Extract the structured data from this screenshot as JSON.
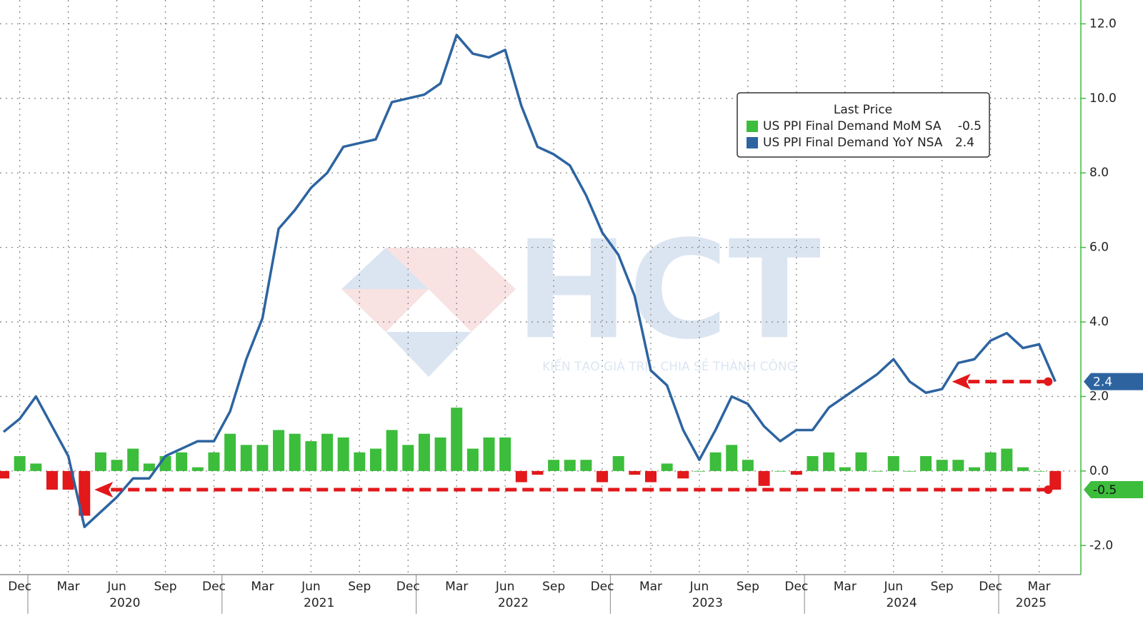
{
  "chart_data": {
    "type": "combo",
    "categories": [
      null,
      "Dec",
      null,
      null,
      "Mar",
      null,
      null,
      "Jun",
      null,
      null,
      "Sep",
      null,
      null,
      "Dec",
      null,
      null,
      "Mar",
      null,
      null,
      "Jun",
      null,
      null,
      "Sep",
      null,
      null,
      "Dec",
      null,
      null,
      "Mar",
      null,
      null,
      "Jun",
      null,
      null,
      "Sep",
      null,
      null,
      "Dec",
      null,
      null,
      "Mar",
      null,
      null,
      "Jun",
      null,
      null,
      "Sep",
      null,
      null,
      "Dec",
      null,
      null,
      "Mar",
      null,
      null,
      "Jun",
      null,
      null,
      "Sep",
      null,
      null,
      "Dec",
      null,
      null,
      "Mar",
      null
    ],
    "groups": [
      {
        "label": null,
        "span": 2
      },
      {
        "label": "2020",
        "span": 12
      },
      {
        "label": "2021",
        "span": 12
      },
      {
        "label": "2022",
        "span": 12
      },
      {
        "label": "2023",
        "span": 12
      },
      {
        "label": "2024",
        "span": 12
      },
      {
        "label": "2025",
        "span": 4
      }
    ],
    "series": [
      {
        "name": "US PPI Final Demand MoM SA",
        "type": "bar",
        "color": "#3cbd3c",
        "negative_color": "#e2181b",
        "values": [
          -0.2,
          0.4,
          0.2,
          -0.5,
          -0.5,
          -1.2,
          0.5,
          0.3,
          0.6,
          0.2,
          0.4,
          0.5,
          0.1,
          0.5,
          1.0,
          0.7,
          0.7,
          1.1,
          1.0,
          0.8,
          1.0,
          0.9,
          0.5,
          0.6,
          1.1,
          0.7,
          1.0,
          0.9,
          1.7,
          0.6,
          0.9,
          0.9,
          -0.3,
          -0.1,
          0.3,
          0.3,
          0.3,
          -0.3,
          0.4,
          -0.1,
          -0.3,
          0.2,
          -0.2,
          0.0,
          0.5,
          0.7,
          0.3,
          -0.4,
          0.0,
          -0.1,
          0.4,
          0.5,
          0.1,
          0.5,
          0.0,
          0.4,
          0.0,
          0.4,
          0.3,
          0.3,
          0.1,
          0.5,
          0.6,
          0.1,
          0.0,
          -0.5
        ]
      },
      {
        "name": "US PPI Final Demand YoY NSA",
        "type": "line",
        "color": "#2d64a0",
        "values": [
          1.05,
          1.4,
          2.0,
          1.2,
          0.4,
          -1.5,
          -1.1,
          -0.7,
          -0.2,
          -0.2,
          0.4,
          0.6,
          0.8,
          0.8,
          1.6,
          3.0,
          4.1,
          6.5,
          7.0,
          7.6,
          8.0,
          8.7,
          8.8,
          8.9,
          9.9,
          10.0,
          10.1,
          10.4,
          11.7,
          11.2,
          11.1,
          11.3,
          9.8,
          8.7,
          8.5,
          8.2,
          7.4,
          6.4,
          5.8,
          4.7,
          2.7,
          2.3,
          1.1,
          0.3,
          1.1,
          2.0,
          1.8,
          1.2,
          0.8,
          1.1,
          1.1,
          1.7,
          2.0,
          2.3,
          2.6,
          3.0,
          2.4,
          2.1,
          2.2,
          2.9,
          3.0,
          3.5,
          3.7,
          3.3,
          3.4,
          2.4
        ]
      }
    ],
    "ylim": [
      -2.78,
      12.64
    ],
    "yticks": [
      {
        "value": -2,
        "label": "-2.0"
      },
      {
        "value": 0,
        "label": "0.0"
      },
      {
        "value": 2,
        "label": "2.0"
      },
      {
        "value": 4,
        "label": "4.0"
      },
      {
        "value": 6,
        "label": "6.0"
      },
      {
        "value": 8,
        "label": "8.0"
      },
      {
        "value": 10,
        "label": "10.0"
      },
      {
        "value": 12,
        "label": "12.0"
      }
    ],
    "grid": true,
    "legend_title": "Last Price",
    "legend_position": "upper right",
    "watermark": {
      "logo": "HCT",
      "tagline": "KIẾN TẠO GIÁ TRỊ - CHIA SẺ THÀNH CÔNG"
    }
  }
}
